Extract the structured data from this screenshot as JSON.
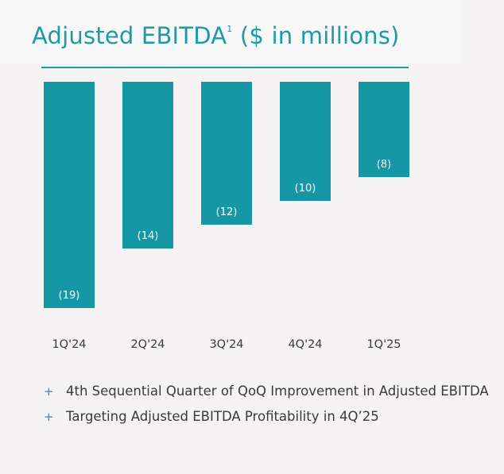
{
  "title": {
    "main": "Adjusted EBITDA",
    "footnote": "1",
    "unit": "($ in millions)"
  },
  "colors": {
    "accent": "#1b9aa8",
    "bar": "#1597a6",
    "label_text": "#ffffff",
    "text": "#3a3a3a",
    "background": "#f5f3f4"
  },
  "chart_data": {
    "type": "bar",
    "categories": [
      "1Q'24",
      "2Q'24",
      "3Q'24",
      "4Q'24",
      "1Q'25"
    ],
    "values": [
      -19,
      -14,
      -12,
      -10,
      -8
    ],
    "data_labels": [
      "(19)",
      "(14)",
      "(12)",
      "(10)",
      "(8)"
    ],
    "ylim": [
      -20,
      0
    ],
    "grid": false,
    "xlabel": "",
    "ylabel": ""
  },
  "bullets": [
    {
      "icon": "plus-icon",
      "text": "4th Sequential Quarter of QoQ Improvement in Adjusted EBITDA"
    },
    {
      "icon": "plus-icon",
      "text": "Targeting Adjusted EBITDA Profitability in 4Q’25"
    }
  ]
}
